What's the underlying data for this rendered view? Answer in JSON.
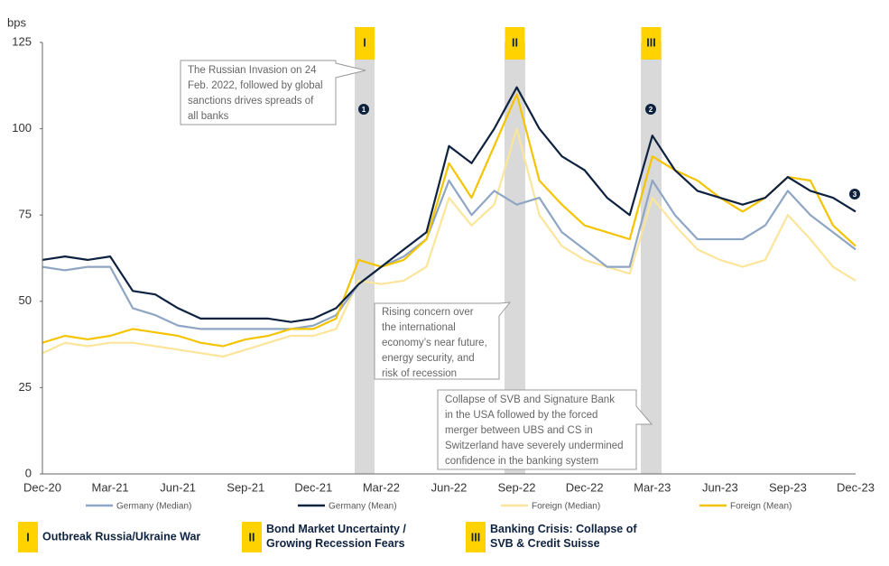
{
  "chart_data": {
    "type": "line",
    "y_label": "bps",
    "categories": [
      "Dec-20",
      null,
      null,
      "Mar-21",
      null,
      null,
      "Jun-21",
      null,
      null,
      "Sep-21",
      null,
      null,
      "Dec-21",
      null,
      null,
      "Mar-22",
      null,
      null,
      "Jun-22",
      null,
      null,
      "Sep-22",
      null,
      null,
      "Dec-22",
      null,
      null,
      "Mar-23",
      null,
      null,
      "Jun-23",
      null,
      null,
      "Sep-23",
      null,
      null,
      "Dec-23"
    ],
    "ylim": [
      0,
      125
    ],
    "yticks": [
      0,
      25,
      50,
      75,
      100,
      125
    ],
    "grid": false,
    "series": [
      {
        "name": "Germany (Median)",
        "color": "#8ea6c4",
        "values": [
          60,
          59,
          60,
          60,
          48,
          46,
          43,
          42,
          42,
          42,
          42,
          42,
          43,
          46,
          55,
          60,
          63,
          68,
          85,
          75,
          82,
          78,
          80,
          70,
          65,
          60,
          60,
          85,
          75,
          68,
          68,
          68,
          72,
          82,
          75,
          70,
          65
        ]
      },
      {
        "name": "Germany (Mean)",
        "color": "#0e2240",
        "values": [
          62,
          63,
          62,
          63,
          53,
          52,
          48,
          45,
          45,
          45,
          45,
          44,
          45,
          48,
          55,
          60,
          65,
          70,
          95,
          90,
          100,
          112,
          100,
          92,
          88,
          80,
          75,
          98,
          88,
          82,
          80,
          78,
          80,
          86,
          82,
          80,
          76
        ]
      },
      {
        "name": "Foreign (Median)",
        "color": "#fbe59a",
        "values": [
          35,
          38,
          37,
          38,
          38,
          37,
          36,
          35,
          34,
          36,
          38,
          40,
          40,
          42,
          56,
          55,
          56,
          60,
          80,
          72,
          78,
          100,
          75,
          66,
          62,
          60,
          58,
          80,
          72,
          65,
          62,
          60,
          62,
          75,
          68,
          60,
          56
        ]
      },
      {
        "name": "Foreign (Mean)",
        "color": "#f5c400",
        "values": [
          38,
          40,
          39,
          40,
          42,
          41,
          40,
          38,
          37,
          39,
          40,
          42,
          42,
          45,
          62,
          60,
          62,
          68,
          90,
          80,
          95,
          110,
          85,
          78,
          72,
          70,
          68,
          92,
          88,
          85,
          80,
          76,
          80,
          86,
          85,
          72,
          66
        ]
      }
    ],
    "periods": [
      {
        "numeral": "I",
        "label": "Outbreak Russia/Ukraine War"
      },
      {
        "numeral": "II",
        "label": "Bond Market Uncertainty / Growing Recession Fears"
      },
      {
        "numeral": "III",
        "label": "Banking Crisis: Collapse of SVB & Credit Suisse"
      }
    ],
    "annotations": [
      {
        "marker": "1",
        "lines": [
          "The Russian Invasion on 24",
          "Feb. 2022, followed by global",
          "sanctions drives spreads of",
          "all banks"
        ]
      },
      {
        "marker": "2",
        "lines": [
          "Rising concern over",
          "the international",
          "economy’s near future,",
          "energy security, and",
          "risk of recession"
        ]
      },
      {
        "marker": "3",
        "lines": [
          "Collapse of SVB and Signature Bank",
          "in the USA followed by the forced",
          "merger between UBS and CS in",
          "Switzerland have severely undermined",
          "confidence in the banking system"
        ]
      }
    ]
  }
}
